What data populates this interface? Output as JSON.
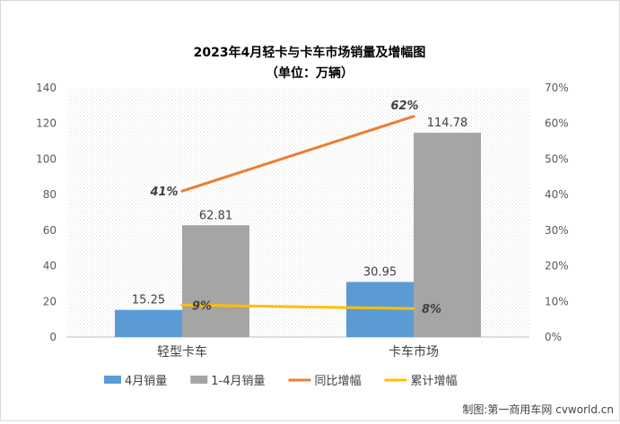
{
  "chart_data": {
    "type": "bar",
    "title": "2023年4月轻卡与卡车市场销量及增幅图",
    "subtitle": "（单位：万辆）",
    "categories": [
      "轻型卡车",
      "卡车市场"
    ],
    "y_left": {
      "min": 0,
      "max": 140,
      "step": 20,
      "ticks": [
        "0",
        "20",
        "40",
        "60",
        "80",
        "100",
        "120",
        "140"
      ]
    },
    "y_right": {
      "min": 0,
      "max": 0.7,
      "step": 0.1,
      "ticks": [
        "0%",
        "10%",
        "20%",
        "30%",
        "40%",
        "50%",
        "60%",
        "70%"
      ]
    },
    "series": [
      {
        "name": "4月销量",
        "kind": "bar",
        "axis": "left",
        "color": "#5b9bd5",
        "values": [
          15.25,
          30.95
        ],
        "labels": [
          "15.25",
          "30.95"
        ]
      },
      {
        "name": "1-4月销量",
        "kind": "bar",
        "axis": "left",
        "color": "#a5a5a5",
        "values": [
          62.81,
          114.78
        ],
        "labels": [
          "62.81",
          "114.78"
        ]
      },
      {
        "name": "同比增幅",
        "kind": "line",
        "axis": "right",
        "color": "#ed7d31",
        "values": [
          0.41,
          0.62
        ],
        "labels": [
          "41%",
          "62%"
        ]
      },
      {
        "name": "累计增幅",
        "kind": "line",
        "axis": "right",
        "color": "#ffc000",
        "values": [
          0.09,
          0.08
        ],
        "labels": [
          "9%",
          "8%"
        ]
      }
    ],
    "grid": "dotted-pattern",
    "legend": "bottom"
  },
  "watermark": "制图:第一商用车网 cvworld.cn"
}
